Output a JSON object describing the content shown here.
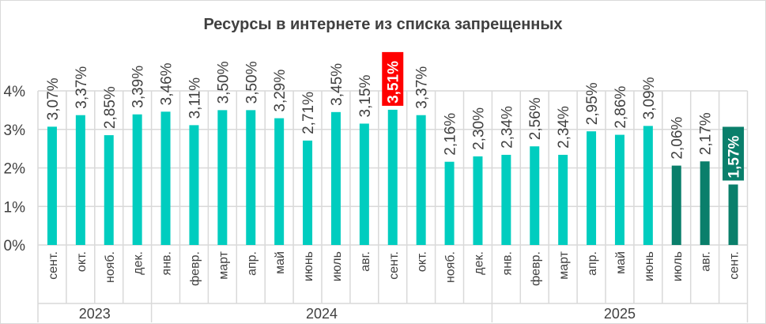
{
  "chart_data": {
    "type": "bar",
    "title": "Ресурсы в интернете из списка запрещенных",
    "xlabel": "",
    "ylabel": "",
    "ylim": [
      0,
      4
    ],
    "yticks": [
      "0%",
      "1%",
      "2%",
      "3%",
      "4%"
    ],
    "grid": true,
    "categories": [
      "сент.",
      "окт.",
      "нояб.",
      "дек.",
      "янв.",
      "февр.",
      "март",
      "апр.",
      "май",
      "июнь",
      "июль",
      "авг.",
      "сент.",
      "окт.",
      "нояб.",
      "дек.",
      "янв.",
      "февр.",
      "март",
      "апр.",
      "май",
      "июнь",
      "июль",
      "авг.",
      "сент."
    ],
    "years": [
      {
        "label": "2023",
        "count": 4
      },
      {
        "label": "2024",
        "count": 12
      },
      {
        "label": "2025",
        "count": 9
      }
    ],
    "values": [
      3.07,
      3.37,
      2.85,
      3.39,
      3.46,
      3.11,
      3.5,
      3.5,
      3.29,
      2.71,
      3.45,
      3.15,
      3.51,
      3.37,
      2.16,
      2.3,
      2.34,
      2.56,
      2.34,
      2.95,
      2.86,
      3.09,
      2.06,
      2.17,
      1.57
    ],
    "labels": [
      "3,07%",
      "3,37%",
      "2,85%",
      "3,39%",
      "3,46%",
      "3,11%",
      "3,50%",
      "3,50%",
      "3,29%",
      "2,71%",
      "3,45%",
      "3,15%",
      "3,51%",
      "3,37%",
      "2,16%",
      "2,30%",
      "2,34%",
      "2,56%",
      "2,34%",
      "2,95%",
      "2,86%",
      "3,09%",
      "2,06%",
      "2,17%",
      "1,57%"
    ],
    "highlight_dark_from_index": 22,
    "label_highlights": [
      {
        "index": 12,
        "color": "#ff0000"
      },
      {
        "index": 24,
        "color": "#0a7f6b"
      }
    ],
    "colors": {
      "bar": "#00cdbf",
      "bar_dark": "#0a7f6b",
      "grid": "#d9d9d9",
      "text": "#404040"
    }
  }
}
